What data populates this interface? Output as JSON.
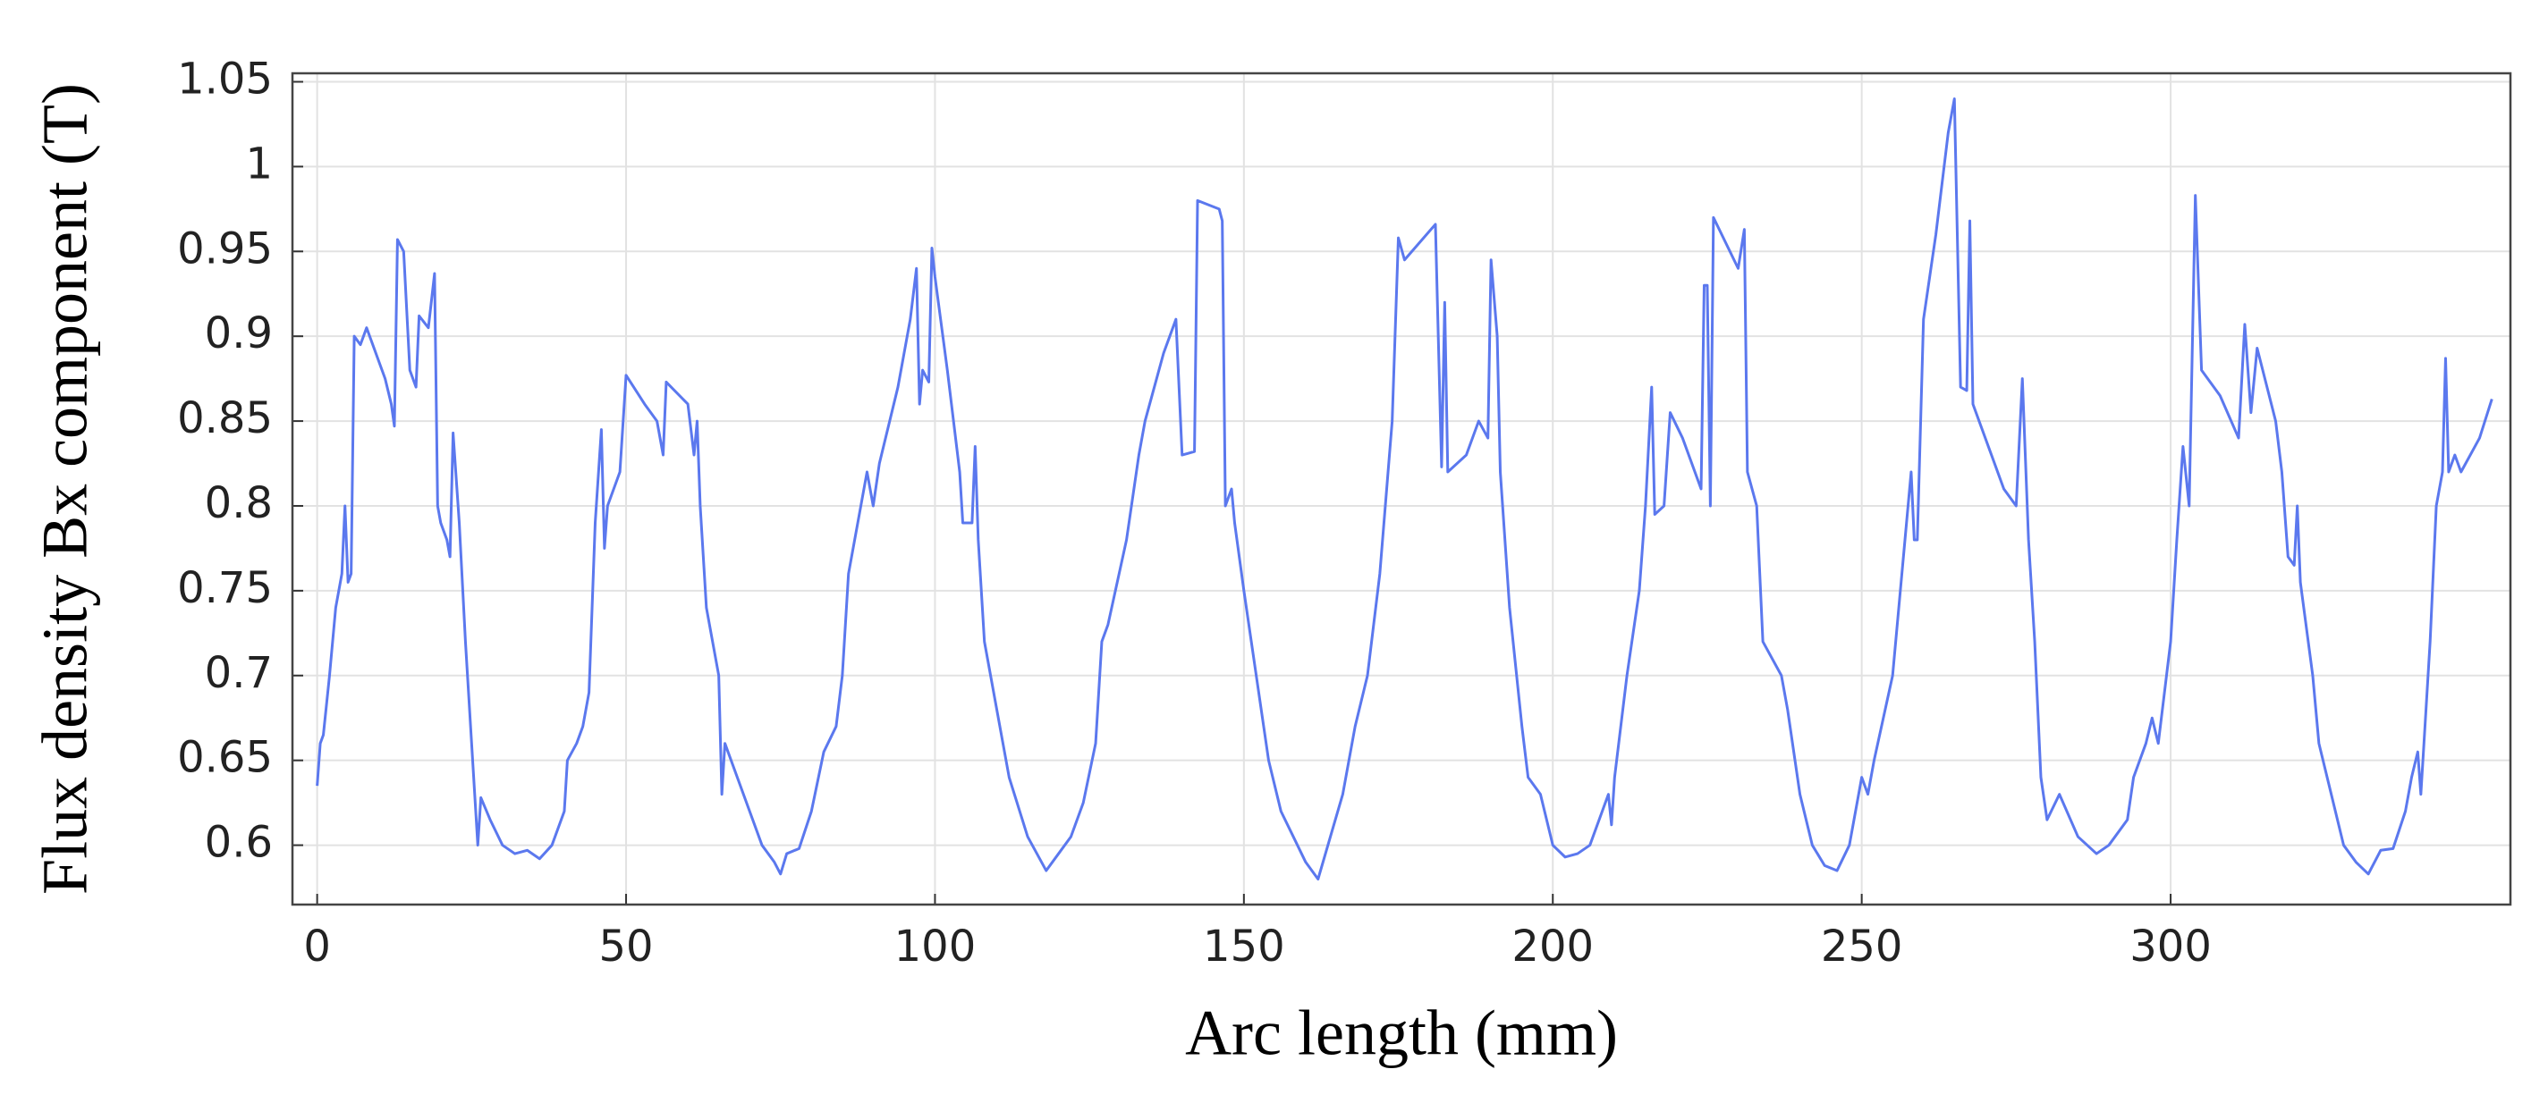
{
  "chart_data": {
    "type": "line",
    "xlabel": "Arc length (mm)",
    "ylabel": "Flux density Bx component (T)",
    "color": "#5b78ee",
    "grid": true,
    "xlim": [
      -4,
      355
    ],
    "ylim": [
      0.565,
      1.055
    ],
    "xticks": [
      0,
      50,
      100,
      150,
      200,
      250,
      300
    ],
    "yticks": [
      0.6,
      0.65,
      0.7,
      0.75,
      0.8,
      0.85,
      0.9,
      0.95,
      1,
      1.05
    ],
    "x": [
      0,
      0.5,
      1,
      2,
      3,
      4,
      4.5,
      5,
      5.5,
      6,
      7,
      8,
      11,
      12,
      12.5,
      13,
      14,
      15,
      16,
      16.5,
      18,
      19,
      19.5,
      20,
      21,
      21.5,
      22,
      23,
      24,
      25,
      26,
      26.5,
      28,
      30,
      32,
      34,
      36,
      38,
      40,
      40.5,
      42,
      43,
      44,
      45,
      46,
      46.5,
      47,
      49,
      50,
      53,
      55,
      56,
      56.5,
      60,
      61,
      61.5,
      62,
      63,
      65,
      65.5,
      66,
      68,
      70,
      72,
      74,
      75,
      76,
      78,
      80,
      82,
      84,
      85,
      86,
      88,
      89,
      90,
      91,
      94,
      96,
      97,
      97.5,
      98,
      99,
      99.5,
      100,
      102,
      103,
      104,
      104.5,
      106,
      106.5,
      107,
      108,
      110,
      112,
      115,
      118,
      120,
      122,
      124,
      126,
      127,
      128,
      131,
      133,
      134,
      137,
      139,
      140,
      142,
      142.5,
      146,
      146.5,
      147,
      148,
      148.5,
      150,
      152,
      154,
      156,
      158,
      160,
      162,
      164,
      166,
      168,
      170,
      172,
      174,
      175,
      176,
      181,
      182,
      182.5,
      183,
      186,
      188,
      189.5,
      190,
      191,
      191.5,
      193,
      195,
      195.5,
      196,
      198,
      200,
      202,
      204,
      206,
      208,
      209,
      209.5,
      210,
      212,
      214,
      215,
      216,
      216.5,
      218,
      219,
      221,
      224,
      224.5,
      225,
      225.5,
      226,
      230,
      231,
      231.5,
      233,
      234,
      237,
      238,
      240,
      242,
      244,
      246,
      248,
      250,
      251,
      252,
      255,
      257,
      258,
      258.5,
      259,
      260,
      262,
      264,
      265,
      266,
      267,
      267.5,
      268,
      271,
      273,
      275,
      276,
      277,
      278,
      279,
      280,
      282,
      285,
      288,
      290,
      293,
      294,
      296,
      297,
      298,
      300,
      301,
      302,
      303,
      304,
      305,
      308,
      311,
      312,
      313,
      314,
      317,
      318,
      319,
      320,
      320.5,
      321,
      323,
      324,
      326,
      328,
      330,
      332,
      334,
      336,
      338,
      339,
      340,
      340.5,
      341,
      342,
      343,
      344,
      344.5,
      345,
      346,
      347,
      350,
      352
    ],
    "values": [
      0.635,
      0.66,
      0.665,
      0.7,
      0.74,
      0.76,
      0.8,
      0.755,
      0.76,
      0.9,
      0.895,
      0.905,
      0.875,
      0.86,
      0.847,
      0.957,
      0.95,
      0.88,
      0.87,
      0.912,
      0.905,
      0.937,
      0.8,
      0.79,
      0.78,
      0.77,
      0.843,
      0.79,
      0.72,
      0.66,
      0.6,
      0.628,
      0.615,
      0.6,
      0.595,
      0.597,
      0.592,
      0.6,
      0.62,
      0.65,
      0.66,
      0.67,
      0.69,
      0.79,
      0.845,
      0.775,
      0.8,
      0.82,
      0.877,
      0.86,
      0.85,
      0.83,
      0.873,
      0.86,
      0.83,
      0.85,
      0.8,
      0.74,
      0.7,
      0.63,
      0.66,
      0.64,
      0.62,
      0.6,
      0.59,
      0.583,
      0.595,
      0.598,
      0.62,
      0.655,
      0.67,
      0.7,
      0.76,
      0.8,
      0.82,
      0.8,
      0.825,
      0.87,
      0.91,
      0.94,
      0.86,
      0.88,
      0.873,
      0.952,
      0.935,
      0.88,
      0.85,
      0.82,
      0.79,
      0.79,
      0.835,
      0.78,
      0.72,
      0.68,
      0.64,
      0.605,
      0.585,
      0.595,
      0.605,
      0.625,
      0.66,
      0.72,
      0.73,
      0.78,
      0.83,
      0.85,
      0.89,
      0.91,
      0.83,
      0.832,
      0.98,
      0.975,
      0.968,
      0.8,
      0.81,
      0.79,
      0.75,
      0.7,
      0.65,
      0.62,
      0.605,
      0.59,
      0.58,
      0.605,
      0.63,
      0.67,
      0.7,
      0.76,
      0.85,
      0.958,
      0.945,
      0.966,
      0.823,
      0.92,
      0.82,
      0.83,
      0.85,
      0.84,
      0.945,
      0.9,
      0.82,
      0.74,
      0.67,
      0.655,
      0.64,
      0.63,
      0.6,
      0.593,
      0.595,
      0.6,
      0.62,
      0.63,
      0.612,
      0.64,
      0.7,
      0.75,
      0.8,
      0.87,
      0.795,
      0.8,
      0.855,
      0.84,
      0.81,
      0.93,
      0.93,
      0.8,
      0.97,
      0.94,
      0.963,
      0.82,
      0.8,
      0.72,
      0.7,
      0.68,
      0.63,
      0.6,
      0.588,
      0.585,
      0.6,
      0.64,
      0.63,
      0.65,
      0.7,
      0.78,
      0.82,
      0.78,
      0.78,
      0.91,
      0.96,
      1.02,
      1.04,
      0.87,
      0.868,
      0.968,
      0.86,
      0.83,
      0.81,
      0.8,
      0.875,
      0.78,
      0.72,
      0.64,
      0.615,
      0.63,
      0.605,
      0.595,
      0.6,
      0.615,
      0.64,
      0.66,
      0.675,
      0.66,
      0.72,
      0.78,
      0.835,
      0.8,
      0.983,
      0.88,
      0.865,
      0.84,
      0.907,
      0.855,
      0.893,
      0.85,
      0.82,
      0.77,
      0.765,
      0.8,
      0.755,
      0.7,
      0.66,
      0.63,
      0.6,
      0.59,
      0.583,
      0.597,
      0.598,
      0.62,
      0.64,
      0.655,
      0.63,
      0.66,
      0.72,
      0.8,
      0.82,
      0.887,
      0.82,
      0.83,
      0.82,
      0.84,
      0.863
    ]
  }
}
